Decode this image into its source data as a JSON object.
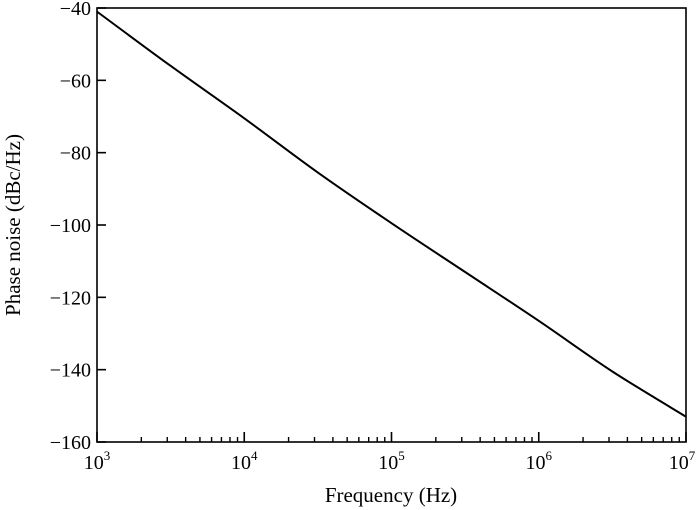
{
  "chart_data": {
    "type": "line",
    "title": "",
    "xlabel": "Frequency (Hz)",
    "ylabel": "Phase noise (dBc/Hz)",
    "xscale": "log",
    "xlim": [
      1000,
      10000000
    ],
    "ylim": [
      -160,
      -40
    ],
    "grid": false,
    "x_ticks": [
      {
        "base": "10",
        "exp": "3",
        "value": 1000
      },
      {
        "base": "10",
        "exp": "4",
        "value": 10000
      },
      {
        "base": "10",
        "exp": "5",
        "value": 100000
      },
      {
        "base": "10",
        "exp": "6",
        "value": 1000000
      },
      {
        "base": "10",
        "exp": "7",
        "value": 10000000
      }
    ],
    "y_ticks": [
      {
        "label": "−40",
        "value": -40
      },
      {
        "label": "−60",
        "value": -60
      },
      {
        "label": "−80",
        "value": -80
      },
      {
        "label": "−100",
        "value": -100
      },
      {
        "label": "−120",
        "value": -120
      },
      {
        "label": "−140",
        "value": -140
      },
      {
        "label": "−160",
        "value": -160
      }
    ],
    "series": [
      {
        "color": "#000000",
        "x": [
          1000,
          3162,
          10000,
          31623,
          100000,
          316228,
          1000000,
          3162278,
          10000000
        ],
        "y": [
          -41,
          -56,
          -70.5,
          -85.5,
          -99.5,
          -113,
          -126.5,
          -140.5,
          -153
        ]
      }
    ]
  }
}
